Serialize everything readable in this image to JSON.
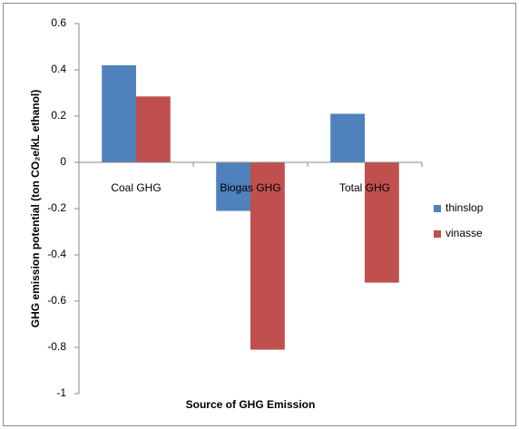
{
  "chart_data": {
    "type": "bar",
    "xlabel": "Source of GHG Emission",
    "ylabel": "GHG emission potential (ton CO₂e/kL ethanol)",
    "categories": [
      "Coal GHG",
      "Biogas GHG",
      "Total GHG"
    ],
    "series": [
      {
        "name": "thinslop",
        "color": "#4f81bd",
        "values": [
          0.42,
          -0.21,
          0.21
        ]
      },
      {
        "name": "vinasse",
        "color": "#c0504d",
        "values": [
          0.285,
          -0.81,
          -0.52
        ]
      }
    ],
    "ylim": [
      -1,
      0.6
    ],
    "yticks": [
      0.6,
      0.4,
      0.2,
      0,
      -0.2,
      -0.4,
      -0.6,
      -0.8,
      -1
    ],
    "grid": false,
    "legend": "right"
  }
}
